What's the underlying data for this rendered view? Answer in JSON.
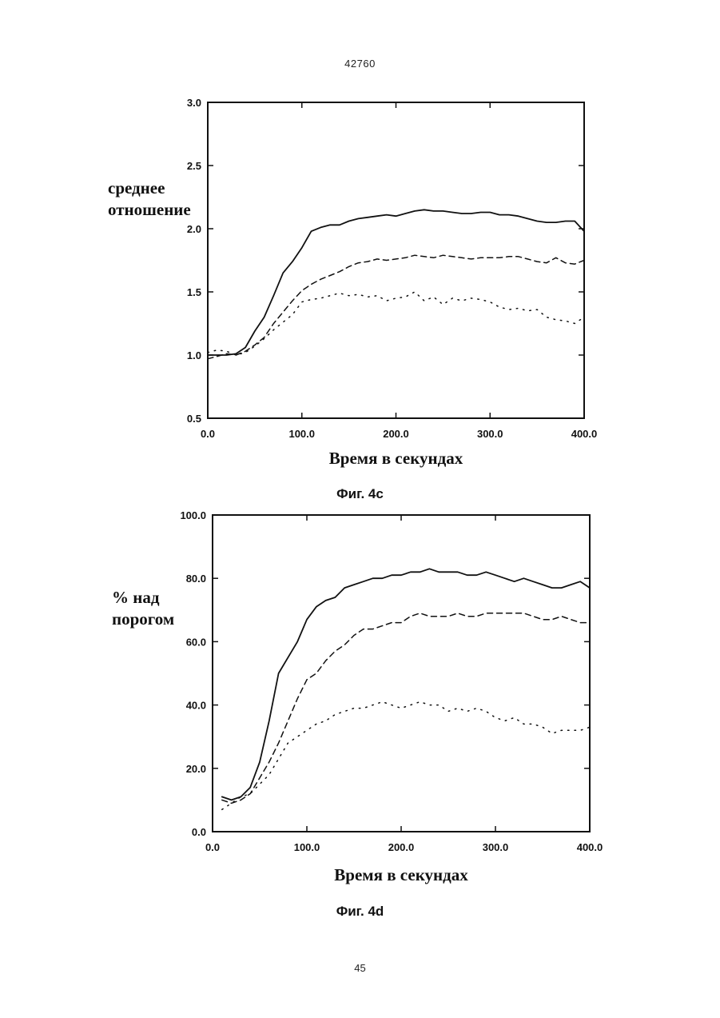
{
  "page": {
    "doc_number": "42760",
    "page_number": "45"
  },
  "chart_data": [
    {
      "type": "line",
      "caption": "Фиг. 4c",
      "ylabel_lines": [
        "среднее",
        "отношение"
      ],
      "xlabel": "Время в секундах",
      "xlim": [
        0,
        400
      ],
      "ylim": [
        0.5,
        3.0
      ],
      "x_ticks": [
        0,
        100,
        200,
        300,
        400
      ],
      "x_tick_labels": [
        "0.0",
        "100.0",
        "200.0",
        "300.0",
        "400.0"
      ],
      "y_ticks": [
        0.5,
        1.0,
        1.5,
        2.0,
        2.5,
        3.0
      ],
      "y_tick_labels": [
        "0.5",
        "1.0",
        "1.5",
        "2.0",
        "2.5",
        "3.0"
      ],
      "grid": false,
      "legend": "none",
      "series": [
        {
          "style": "solid",
          "x": [
            0,
            10,
            20,
            30,
            40,
            50,
            60,
            70,
            80,
            90,
            100,
            110,
            120,
            130,
            140,
            150,
            160,
            170,
            180,
            190,
            200,
            210,
            220,
            230,
            240,
            250,
            260,
            270,
            280,
            290,
            300,
            310,
            320,
            330,
            340,
            350,
            360,
            370,
            380,
            390,
            400
          ],
          "y": [
            1.0,
            1.0,
            1.0,
            1.01,
            1.06,
            1.19,
            1.3,
            1.47,
            1.65,
            1.74,
            1.85,
            1.98,
            2.01,
            2.03,
            2.03,
            2.06,
            2.08,
            2.09,
            2.1,
            2.11,
            2.1,
            2.12,
            2.14,
            2.15,
            2.14,
            2.14,
            2.13,
            2.12,
            2.12,
            2.13,
            2.13,
            2.11,
            2.11,
            2.1,
            2.08,
            2.06,
            2.05,
            2.05,
            2.06,
            2.06,
            1.98
          ]
        },
        {
          "style": "dashed",
          "x": [
            0,
            10,
            20,
            30,
            40,
            50,
            60,
            70,
            80,
            90,
            100,
            110,
            120,
            130,
            140,
            150,
            160,
            170,
            180,
            190,
            200,
            210,
            220,
            230,
            240,
            250,
            260,
            270,
            280,
            290,
            300,
            310,
            320,
            330,
            340,
            350,
            360,
            370,
            380,
            390,
            400
          ],
          "y": [
            0.97,
            0.99,
            1.01,
            1.0,
            1.03,
            1.08,
            1.14,
            1.25,
            1.34,
            1.43,
            1.51,
            1.56,
            1.6,
            1.63,
            1.66,
            1.7,
            1.73,
            1.74,
            1.76,
            1.75,
            1.76,
            1.77,
            1.79,
            1.78,
            1.77,
            1.79,
            1.78,
            1.77,
            1.76,
            1.77,
            1.77,
            1.77,
            1.78,
            1.78,
            1.76,
            1.74,
            1.73,
            1.77,
            1.73,
            1.72,
            1.75
          ]
        },
        {
          "style": "dotted",
          "x": [
            0,
            10,
            20,
            30,
            40,
            50,
            60,
            70,
            80,
            90,
            100,
            110,
            120,
            130,
            140,
            150,
            160,
            170,
            180,
            190,
            200,
            210,
            220,
            230,
            240,
            250,
            260,
            270,
            280,
            290,
            300,
            310,
            320,
            330,
            340,
            350,
            360,
            370,
            380,
            390,
            400
          ],
          "y": [
            1.02,
            1.04,
            1.03,
            1.0,
            1.02,
            1.07,
            1.13,
            1.2,
            1.26,
            1.32,
            1.42,
            1.44,
            1.45,
            1.47,
            1.49,
            1.47,
            1.48,
            1.46,
            1.47,
            1.43,
            1.45,
            1.46,
            1.5,
            1.43,
            1.46,
            1.4,
            1.45,
            1.43,
            1.45,
            1.44,
            1.42,
            1.38,
            1.36,
            1.37,
            1.35,
            1.36,
            1.3,
            1.28,
            1.27,
            1.25,
            1.3
          ]
        }
      ]
    },
    {
      "type": "line",
      "caption": "Фиг. 4d",
      "ylabel_lines": [
        "% над",
        "порогом"
      ],
      "xlabel": "Время в секундах",
      "xlim": [
        0,
        400
      ],
      "ylim": [
        0,
        100
      ],
      "x_ticks": [
        0,
        100,
        200,
        300,
        400
      ],
      "x_tick_labels": [
        "0.0",
        "100.0",
        "200.0",
        "300.0",
        "400.0"
      ],
      "y_ticks": [
        0,
        20,
        40,
        60,
        80,
        100
      ],
      "y_tick_labels": [
        "0.0",
        "20.0",
        "40.0",
        "60.0",
        "80.0",
        "100.0"
      ],
      "grid": false,
      "legend": "none",
      "series": [
        {
          "style": "solid",
          "x": [
            10,
            20,
            30,
            40,
            50,
            60,
            70,
            80,
            90,
            100,
            110,
            120,
            130,
            140,
            150,
            160,
            170,
            180,
            190,
            200,
            210,
            220,
            230,
            240,
            250,
            260,
            270,
            280,
            290,
            300,
            310,
            320,
            330,
            340,
            350,
            360,
            370,
            380,
            390,
            400
          ],
          "y": [
            11,
            10,
            11,
            14,
            22,
            35,
            50,
            55,
            60,
            67,
            71,
            73,
            74,
            77,
            78,
            79,
            80,
            80,
            81,
            81,
            82,
            82,
            83,
            82,
            82,
            82,
            81,
            81,
            82,
            81,
            80,
            79,
            80,
            79,
            78,
            77,
            77,
            78,
            79,
            77
          ]
        },
        {
          "style": "dashed",
          "x": [
            10,
            20,
            30,
            40,
            50,
            60,
            70,
            80,
            90,
            100,
            110,
            120,
            130,
            140,
            150,
            160,
            170,
            180,
            190,
            200,
            210,
            220,
            230,
            240,
            250,
            260,
            270,
            280,
            290,
            300,
            310,
            320,
            330,
            340,
            350,
            360,
            370,
            380,
            390,
            400
          ],
          "y": [
            10,
            9,
            10,
            12,
            17,
            22,
            28,
            35,
            42,
            48,
            50,
            54,
            57,
            59,
            62,
            64,
            64,
            65,
            66,
            66,
            68,
            69,
            68,
            68,
            68,
            69,
            68,
            68,
            69,
            69,
            69,
            69,
            69,
            68,
            67,
            67,
            68,
            67,
            66,
            66
          ]
        },
        {
          "style": "dotted",
          "x": [
            10,
            20,
            30,
            40,
            50,
            60,
            70,
            80,
            90,
            100,
            110,
            120,
            130,
            140,
            150,
            160,
            170,
            180,
            190,
            200,
            210,
            220,
            230,
            240,
            250,
            260,
            270,
            280,
            290,
            300,
            310,
            320,
            330,
            340,
            350,
            360,
            370,
            380,
            390,
            400
          ],
          "y": [
            7,
            9,
            11,
            12,
            15,
            18,
            23,
            28,
            30,
            32,
            34,
            35,
            37,
            38,
            39,
            39,
            40,
            41,
            40,
            39,
            40,
            41,
            40,
            40,
            38,
            39,
            38,
            39,
            38,
            36,
            35,
            36,
            34,
            34,
            33,
            31,
            32,
            32,
            32,
            33
          ]
        }
      ]
    }
  ]
}
